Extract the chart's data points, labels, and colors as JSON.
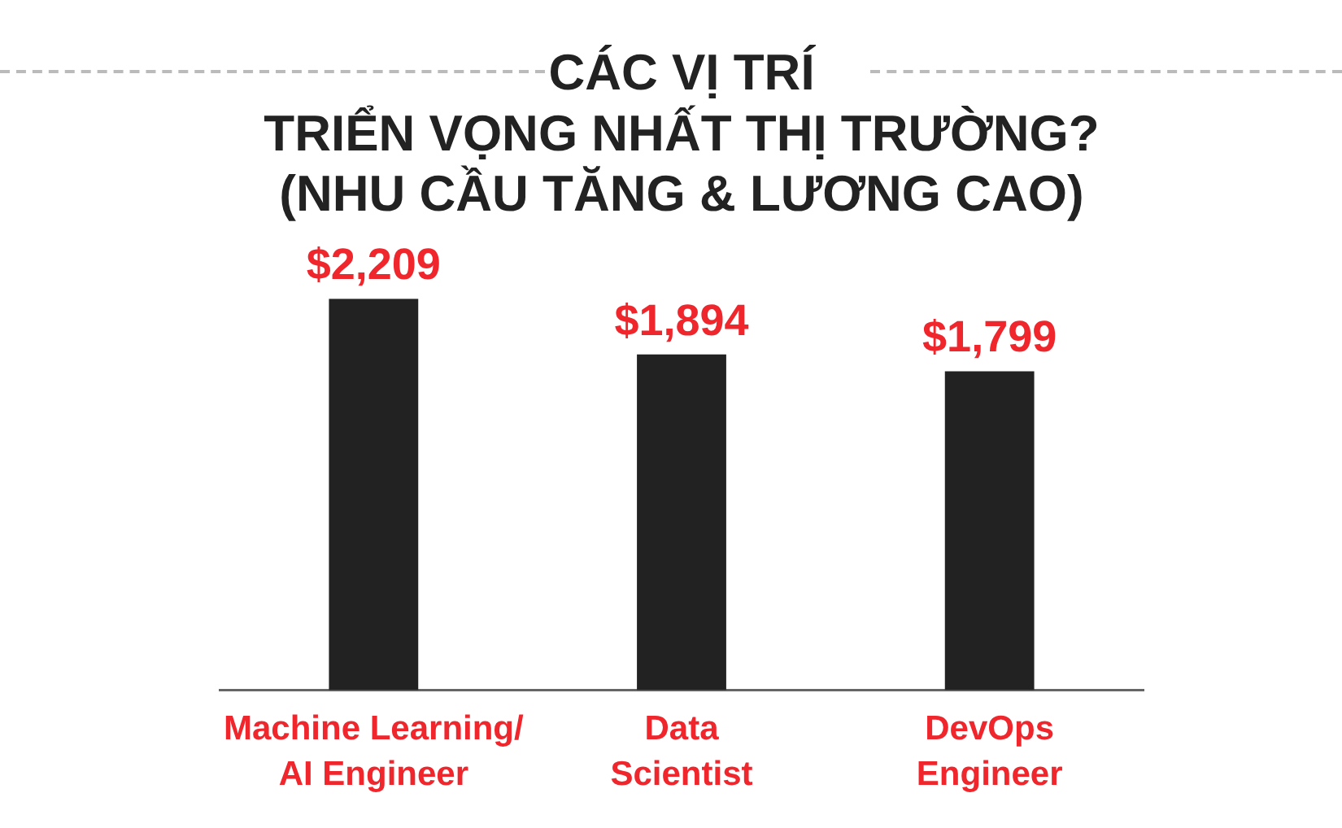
{
  "chart_data": {
    "type": "bar",
    "title": "CÁC VỊ TRÍ\nTRIỂN VỌNG NHẤT THỊ TRƯỜNG?\n(NHU CẦU TĂNG & LƯƠNG CAO)",
    "categories": [
      "Machine Learning/\nAI Engineer",
      "Data\nScientist",
      "DevOps\nEngineer"
    ],
    "values": [
      2209,
      1894,
      1799
    ],
    "color": "#222222",
    "value_labels": [
      "$2,209",
      "$1,894",
      "$1,799"
    ],
    "grid": false,
    "legend": false
  }
}
